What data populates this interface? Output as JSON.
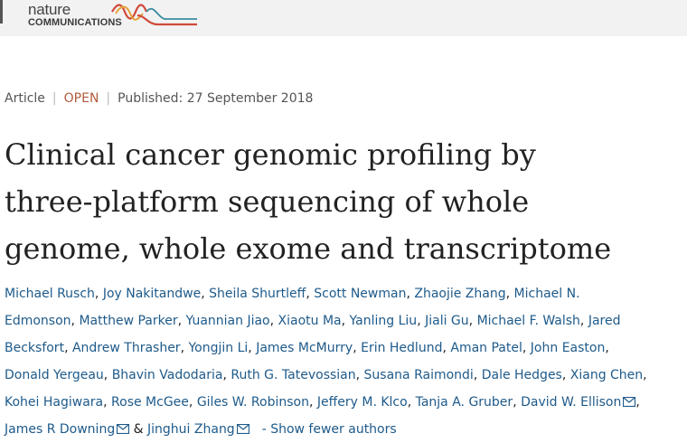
{
  "header": {
    "logo_line1": "nature",
    "logo_line2": "COMMUNICATIONS"
  },
  "meta": {
    "type": "Article",
    "access": "OPEN",
    "published": "Published: 27 September 2018"
  },
  "title_lines": [
    "Clinical cancer genomic profiling by",
    "three-platform sequencing of whole",
    "genome, whole exome and transcriptome"
  ],
  "authors": [
    "Michael Rusch",
    "Joy Nakitandwe",
    "Sheila Shurtleff",
    "Scott Newman",
    "Zhaojie Zhang",
    "Michael N.",
    "Edmonson",
    "Matthew Parker",
    "Yuannian Jiao",
    "Xiaotu Ma",
    "Yanling Liu",
    "Jiali Gu",
    "Michael F. Walsh",
    "Jared",
    "Becksfort",
    "Andrew Thrasher",
    "Yongjin Li",
    "James McMurry",
    "Erin Hedlund",
    "Aman Patel",
    "John Easton",
    "Donald Yergeau",
    "Bhavin Vadodaria",
    "Ruth G. Tatevossian",
    "Susana Raimondi",
    "Dale Hedges",
    "Xiang Chen",
    "Kohei Hagiwara",
    "Rose McGee",
    "Giles W. Robinson",
    "Jeffery M. Klco",
    "Tanja A. Gruber",
    "David W. Ellison",
    "James R Downing",
    "Jinghui Zhang"
  ],
  "author_sep": ", ",
  "amp": " & ",
  "toggle_label": "- Show fewer authors",
  "colors": {
    "link": "#1e5a8a",
    "open": "#b15b3b",
    "header_bg": "#f2f2f2"
  },
  "icons": {
    "email": "email-icon"
  }
}
